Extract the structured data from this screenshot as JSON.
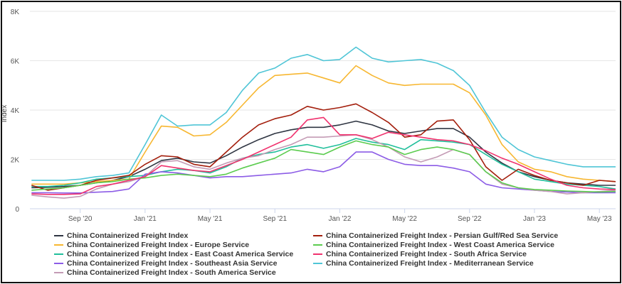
{
  "chart_data": {
    "type": "line",
    "ylabel": "Index",
    "xlabel": "",
    "ylim": [
      0,
      8000
    ],
    "yticks": [
      0,
      2000,
      4000,
      6000,
      8000
    ],
    "ytick_labels": [
      "0",
      "2K",
      "4K",
      "6K",
      "8K"
    ],
    "xrange": [
      "2020-06",
      "2023-06"
    ],
    "xticks": [
      "2020-09",
      "2021-01",
      "2021-05",
      "2021-09",
      "2022-01",
      "2022-05",
      "2022-09",
      "2023-01",
      "2023-05"
    ],
    "xtick_labels": [
      "Sep '20",
      "Jan '21",
      "May '21",
      "Sep '21",
      "Jan '22",
      "May '22",
      "Sep '22",
      "Jan '23",
      "May '23"
    ],
    "grid": true,
    "legend_placement": "bottom",
    "x": [
      "2020-06",
      "2020-07",
      "2020-08",
      "2020-09",
      "2020-10",
      "2020-11",
      "2020-12",
      "2021-01",
      "2021-02",
      "2021-03",
      "2021-04",
      "2021-05",
      "2021-06",
      "2021-07",
      "2021-08",
      "2021-09",
      "2021-10",
      "2021-11",
      "2021-12",
      "2022-01",
      "2022-02",
      "2022-03",
      "2022-04",
      "2022-05",
      "2022-06",
      "2022-07",
      "2022-08",
      "2022-09",
      "2022-10",
      "2022-11",
      "2022-12",
      "2023-01",
      "2023-02",
      "2023-03",
      "2023-04",
      "2023-05",
      "2023-06"
    ],
    "series": [
      {
        "name": "China Containerized Freight Index",
        "color": "#2f3542",
        "values": [
          850,
          870,
          900,
          950,
          1050,
          1150,
          1300,
          1600,
          1950,
          2050,
          1900,
          1850,
          2150,
          2500,
          2800,
          3050,
          3200,
          3300,
          3300,
          3400,
          3550,
          3400,
          3150,
          3050,
          3150,
          3250,
          3250,
          2900,
          2300,
          1850,
          1500,
          1300,
          1150,
          1050,
          1000,
          950,
          950
        ]
      },
      {
        "name": "China Containerized Freight Index - Europe Service",
        "color": "#f7b731",
        "values": [
          1000,
          1000,
          1000,
          1050,
          1100,
          1150,
          1200,
          2300,
          3350,
          3300,
          2950,
          3000,
          3500,
          4200,
          4900,
          5400,
          5450,
          5500,
          5300,
          5100,
          5800,
          5400,
          5100,
          5000,
          5050,
          5050,
          5050,
          4700,
          3800,
          2600,
          1900,
          1600,
          1500,
          1300,
          1200,
          1150,
          1100
        ]
      },
      {
        "name": "China Containerized Freight Index - East Coast America Service",
        "color": "#20bf9b",
        "values": [
          900,
          900,
          950,
          1050,
          1200,
          1250,
          1300,
          1350,
          1500,
          1600,
          1550,
          1450,
          1700,
          2050,
          2200,
          2300,
          2500,
          2600,
          2450,
          2600,
          2850,
          2700,
          2600,
          2400,
          2800,
          2750,
          2700,
          2600,
          2200,
          1800,
          1500,
          1200,
          1100,
          1000,
          950,
          900,
          800
        ]
      },
      {
        "name": "China Containerized Freight Index - Southeast Asia Service",
        "color": "#8c5ce6",
        "values": [
          650,
          650,
          640,
          640,
          670,
          700,
          800,
          1400,
          1500,
          1450,
          1350,
          1250,
          1300,
          1300,
          1350,
          1400,
          1450,
          1600,
          1500,
          1700,
          2300,
          2300,
          2000,
          1800,
          1750,
          1750,
          1650,
          1500,
          1000,
          850,
          800,
          750,
          700,
          680,
          650,
          650,
          650
        ]
      },
      {
        "name": "China Containerized Freight Index - South America Service",
        "color": "#c49bb5",
        "values": [
          550,
          480,
          430,
          500,
          800,
          1000,
          1100,
          1300,
          1900,
          1950,
          1700,
          1600,
          1850,
          2050,
          2150,
          2400,
          2600,
          2900,
          2900,
          2950,
          3000,
          2800,
          2500,
          2100,
          1900,
          2100,
          2400,
          2200,
          1500,
          1000,
          850,
          750,
          700,
          600,
          650,
          700,
          750
        ]
      },
      {
        "name": "China Containerized Freight Index - Persian Gulf/Red Sea Service",
        "color": "#a31e0c",
        "values": [
          950,
          750,
          850,
          950,
          1150,
          1250,
          1350,
          1800,
          2150,
          2100,
          1800,
          1700,
          2300,
          2900,
          3400,
          3650,
          3800,
          4150,
          4000,
          4100,
          4250,
          3900,
          3500,
          2900,
          3000,
          3550,
          3600,
          2800,
          1700,
          1150,
          1600,
          1350,
          1150,
          1050,
          950,
          1150,
          1100
        ]
      },
      {
        "name": "China Containerized Freight Index - West Coast America Service",
        "color": "#5ccc4f",
        "values": [
          750,
          800,
          850,
          950,
          1050,
          1100,
          1200,
          1250,
          1350,
          1400,
          1350,
          1300,
          1400,
          1650,
          1850,
          2050,
          2400,
          2300,
          2200,
          2500,
          2750,
          2600,
          2500,
          2200,
          2400,
          2500,
          2400,
          2200,
          1500,
          1050,
          850,
          780,
          750,
          720,
          700,
          680,
          700
        ]
      },
      {
        "name": "China Containerized Freight Index - South Africa Service",
        "color": "#f0326e",
        "values": [
          600,
          580,
          580,
          600,
          900,
          1000,
          1150,
          1300,
          1750,
          1650,
          1550,
          1500,
          1750,
          2000,
          2300,
          2600,
          2900,
          3600,
          3700,
          3000,
          3000,
          2850,
          3100,
          3000,
          2900,
          2800,
          2750,
          2600,
          2350,
          2050,
          1800,
          1500,
          1200,
          950,
          850,
          800,
          780
        ]
      },
      {
        "name": "China Containerized Freight Index - Mediterranean Service",
        "color": "#4fc5d6",
        "values": [
          1150,
          1150,
          1150,
          1200,
          1300,
          1350,
          1450,
          2600,
          3800,
          3350,
          3400,
          3400,
          3900,
          4800,
          5500,
          5700,
          6100,
          6250,
          6000,
          6050,
          6550,
          6100,
          5950,
          6000,
          6050,
          5900,
          5600,
          5000,
          3900,
          2900,
          2400,
          2100,
          1950,
          1800,
          1700,
          1700,
          1700
        ]
      }
    ]
  }
}
